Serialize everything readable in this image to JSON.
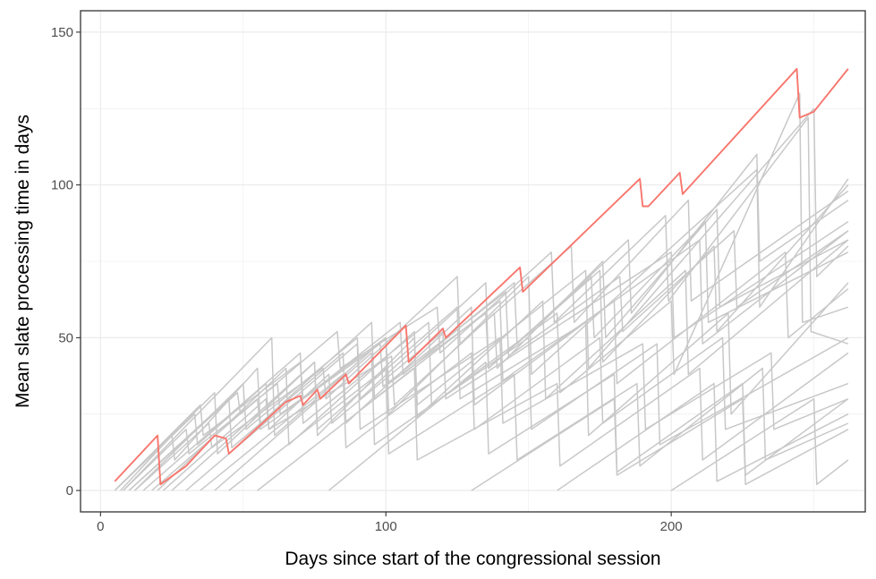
{
  "chart_data": {
    "type": "line",
    "xlabel": "Days since start of the congressional session",
    "ylabel": "Mean slate processing time in days",
    "xlim": [
      -7,
      268
    ],
    "ylim": [
      -7,
      157
    ],
    "x_ticks": [
      0,
      100,
      200
    ],
    "y_ticks": [
      0,
      50,
      100,
      150
    ],
    "x_tick_labels": [
      "0",
      "100",
      "200"
    ],
    "y_tick_labels": [
      "0",
      "50",
      "100",
      "150"
    ],
    "grid": true,
    "legend": "none",
    "colors": {
      "highlight": "#f8766d",
      "background_series": "#c8c8c8",
      "grid": "#ebebeb",
      "panel_border": "#333333"
    },
    "series": [
      {
        "highlight": true,
        "x": [
          5,
          20,
          21,
          30,
          40,
          44,
          45,
          65,
          70,
          71,
          76,
          77,
          86,
          87,
          107,
          108,
          120,
          121,
          147,
          148,
          189,
          190,
          192,
          193,
          203,
          204,
          244,
          245,
          250,
          262
        ],
        "y": [
          3,
          18,
          2,
          8,
          18,
          17,
          12,
          29,
          31,
          28,
          33,
          30,
          38,
          35,
          54,
          42,
          53,
          50,
          73,
          65,
          102,
          93,
          93,
          94,
          104,
          97,
          138,
          122,
          124,
          138
        ]
      },
      {
        "x": [
          5,
          33,
          34,
          58,
          59,
          80,
          81,
          120,
          121,
          200,
          201,
          262
        ],
        "y": [
          0,
          25,
          15,
          35,
          20,
          38,
          22,
          52,
          30,
          78,
          50,
          88
        ]
      },
      {
        "x": [
          7,
          25,
          26,
          55,
          56,
          95,
          96,
          140,
          141,
          210,
          211,
          262
        ],
        "y": [
          0,
          18,
          10,
          40,
          22,
          55,
          30,
          62,
          36,
          82,
          48,
          85
        ]
      },
      {
        "x": [
          6,
          40,
          41,
          75,
          76,
          110,
          111,
          170,
          171,
          250,
          251,
          262
        ],
        "y": [
          1,
          32,
          12,
          42,
          18,
          50,
          28,
          72,
          40,
          125,
          70,
          80
        ]
      },
      {
        "x": [
          8,
          60,
          61,
          100,
          101,
          150,
          151,
          230,
          231,
          262
        ],
        "y": [
          0,
          50,
          18,
          50,
          25,
          70,
          38,
          105,
          60,
          102
        ]
      },
      {
        "x": [
          10,
          45,
          46,
          85,
          86,
          130,
          131,
          180,
          181,
          240,
          241,
          262
        ],
        "y": [
          0,
          30,
          14,
          45,
          22,
          60,
          28,
          62,
          35,
          78,
          50,
          66
        ]
      },
      {
        "x": [
          12,
          50,
          51,
          90,
          91,
          135,
          136,
          175,
          176,
          215,
          216,
          262
        ],
        "y": [
          0,
          35,
          20,
          50,
          30,
          68,
          40,
          72,
          42,
          80,
          52,
          100
        ]
      },
      {
        "x": [
          15,
          70,
          71,
          115,
          116,
          160,
          161,
          200,
          201,
          245,
          246,
          262
        ],
        "y": [
          0,
          45,
          22,
          55,
          28,
          58,
          32,
          62,
          38,
          130,
          55,
          60
        ]
      },
      {
        "x": [
          20,
          65,
          66,
          110,
          111,
          155,
          156,
          205,
          206,
          262
        ],
        "y": [
          0,
          40,
          15,
          52,
          24,
          62,
          30,
          72,
          38,
          82
        ]
      },
      {
        "x": [
          25,
          75,
          76,
          125,
          126,
          170,
          171,
          220,
          221,
          262
        ],
        "y": [
          0,
          42,
          20,
          60,
          30,
          55,
          18,
          58,
          25,
          68
        ]
      },
      {
        "x": [
          30,
          90,
          91,
          140,
          141,
          190,
          191,
          235,
          236,
          262
        ],
        "y": [
          0,
          48,
          20,
          50,
          22,
          48,
          20,
          45,
          20,
          30
        ]
      },
      {
        "x": [
          40,
          95,
          96,
          150,
          151,
          195,
          196,
          262
        ],
        "y": [
          0,
          45,
          15,
          50,
          20,
          48,
          15,
          50
        ]
      },
      {
        "x": [
          55,
          110,
          111,
          160,
          161,
          210,
          211,
          262
        ],
        "y": [
          0,
          40,
          10,
          35,
          8,
          40,
          10,
          45
        ]
      },
      {
        "x": [
          80,
          135,
          136,
          180,
          181,
          225,
          226,
          262
        ],
        "y": [
          0,
          42,
          12,
          38,
          6,
          35,
          5,
          30
        ]
      },
      {
        "x": [
          130,
          180,
          181,
          225,
          226,
          262
        ],
        "y": [
          0,
          30,
          5,
          30,
          2,
          20
        ]
      },
      {
        "x": [
          160,
          215,
          216,
          262
        ],
        "y": [
          0,
          35,
          3,
          25
        ]
      },
      {
        "x": [
          200,
          250,
          251,
          262
        ],
        "y": [
          0,
          30,
          2,
          10
        ]
      },
      {
        "x": [
          5,
          35,
          36,
          70,
          71,
          105,
          106,
          145,
          146,
          185,
          186,
          230,
          231,
          262
        ],
        "y": [
          0,
          28,
          18,
          42,
          30,
          55,
          38,
          68,
          48,
          82,
          58,
          110,
          75,
          95
        ]
      },
      {
        "x": [
          8,
          30,
          31,
          62,
          63,
          100,
          101,
          135,
          136,
          172,
          173,
          212,
          213,
          262
        ],
        "y": [
          0,
          20,
          12,
          35,
          25,
          50,
          35,
          58,
          40,
          70,
          50,
          88,
          55,
          78
        ]
      },
      {
        "x": [
          10,
          48,
          49,
          83,
          84,
          118,
          119,
          158,
          159,
          198,
          199,
          248,
          249,
          262
        ],
        "y": [
          0,
          32,
          25,
          52,
          40,
          60,
          45,
          78,
          55,
          90,
          62,
          122,
          52,
          48
        ]
      },
      {
        "x": [
          18,
          55,
          56,
          98,
          99,
          142,
          143,
          182,
          183,
          222,
          223,
          262
        ],
        "y": [
          0,
          30,
          20,
          48,
          34,
          65,
          44,
          70,
          52,
          85,
          60,
          85
        ]
      },
      {
        "x": [
          22,
          58,
          59,
          102,
          103,
          138,
          139,
          176,
          177,
          216,
          217,
          262
        ],
        "y": [
          0,
          30,
          20,
          44,
          28,
          58,
          40,
          75,
          50,
          92,
          60,
          82
        ]
      },
      {
        "x": [
          12,
          38,
          39,
          78,
          79,
          125,
          126,
          165,
          166,
          206,
          207,
          262
        ],
        "y": [
          0,
          22,
          14,
          40,
          30,
          70,
          48,
          80,
          55,
          95,
          62,
          98
        ]
      },
      {
        "x": [
          35,
          85,
          86,
          130,
          131,
          175,
          176,
          218,
          219,
          262
        ],
        "y": [
          0,
          38,
          14,
          45,
          20,
          50,
          22,
          50,
          20,
          35
        ]
      },
      {
        "x": [
          45,
          100,
          101,
          145,
          146,
          188,
          189,
          232,
          233,
          262
        ],
        "y": [
          0,
          40,
          12,
          38,
          10,
          35,
          8,
          40,
          10,
          22
        ]
      }
    ]
  }
}
